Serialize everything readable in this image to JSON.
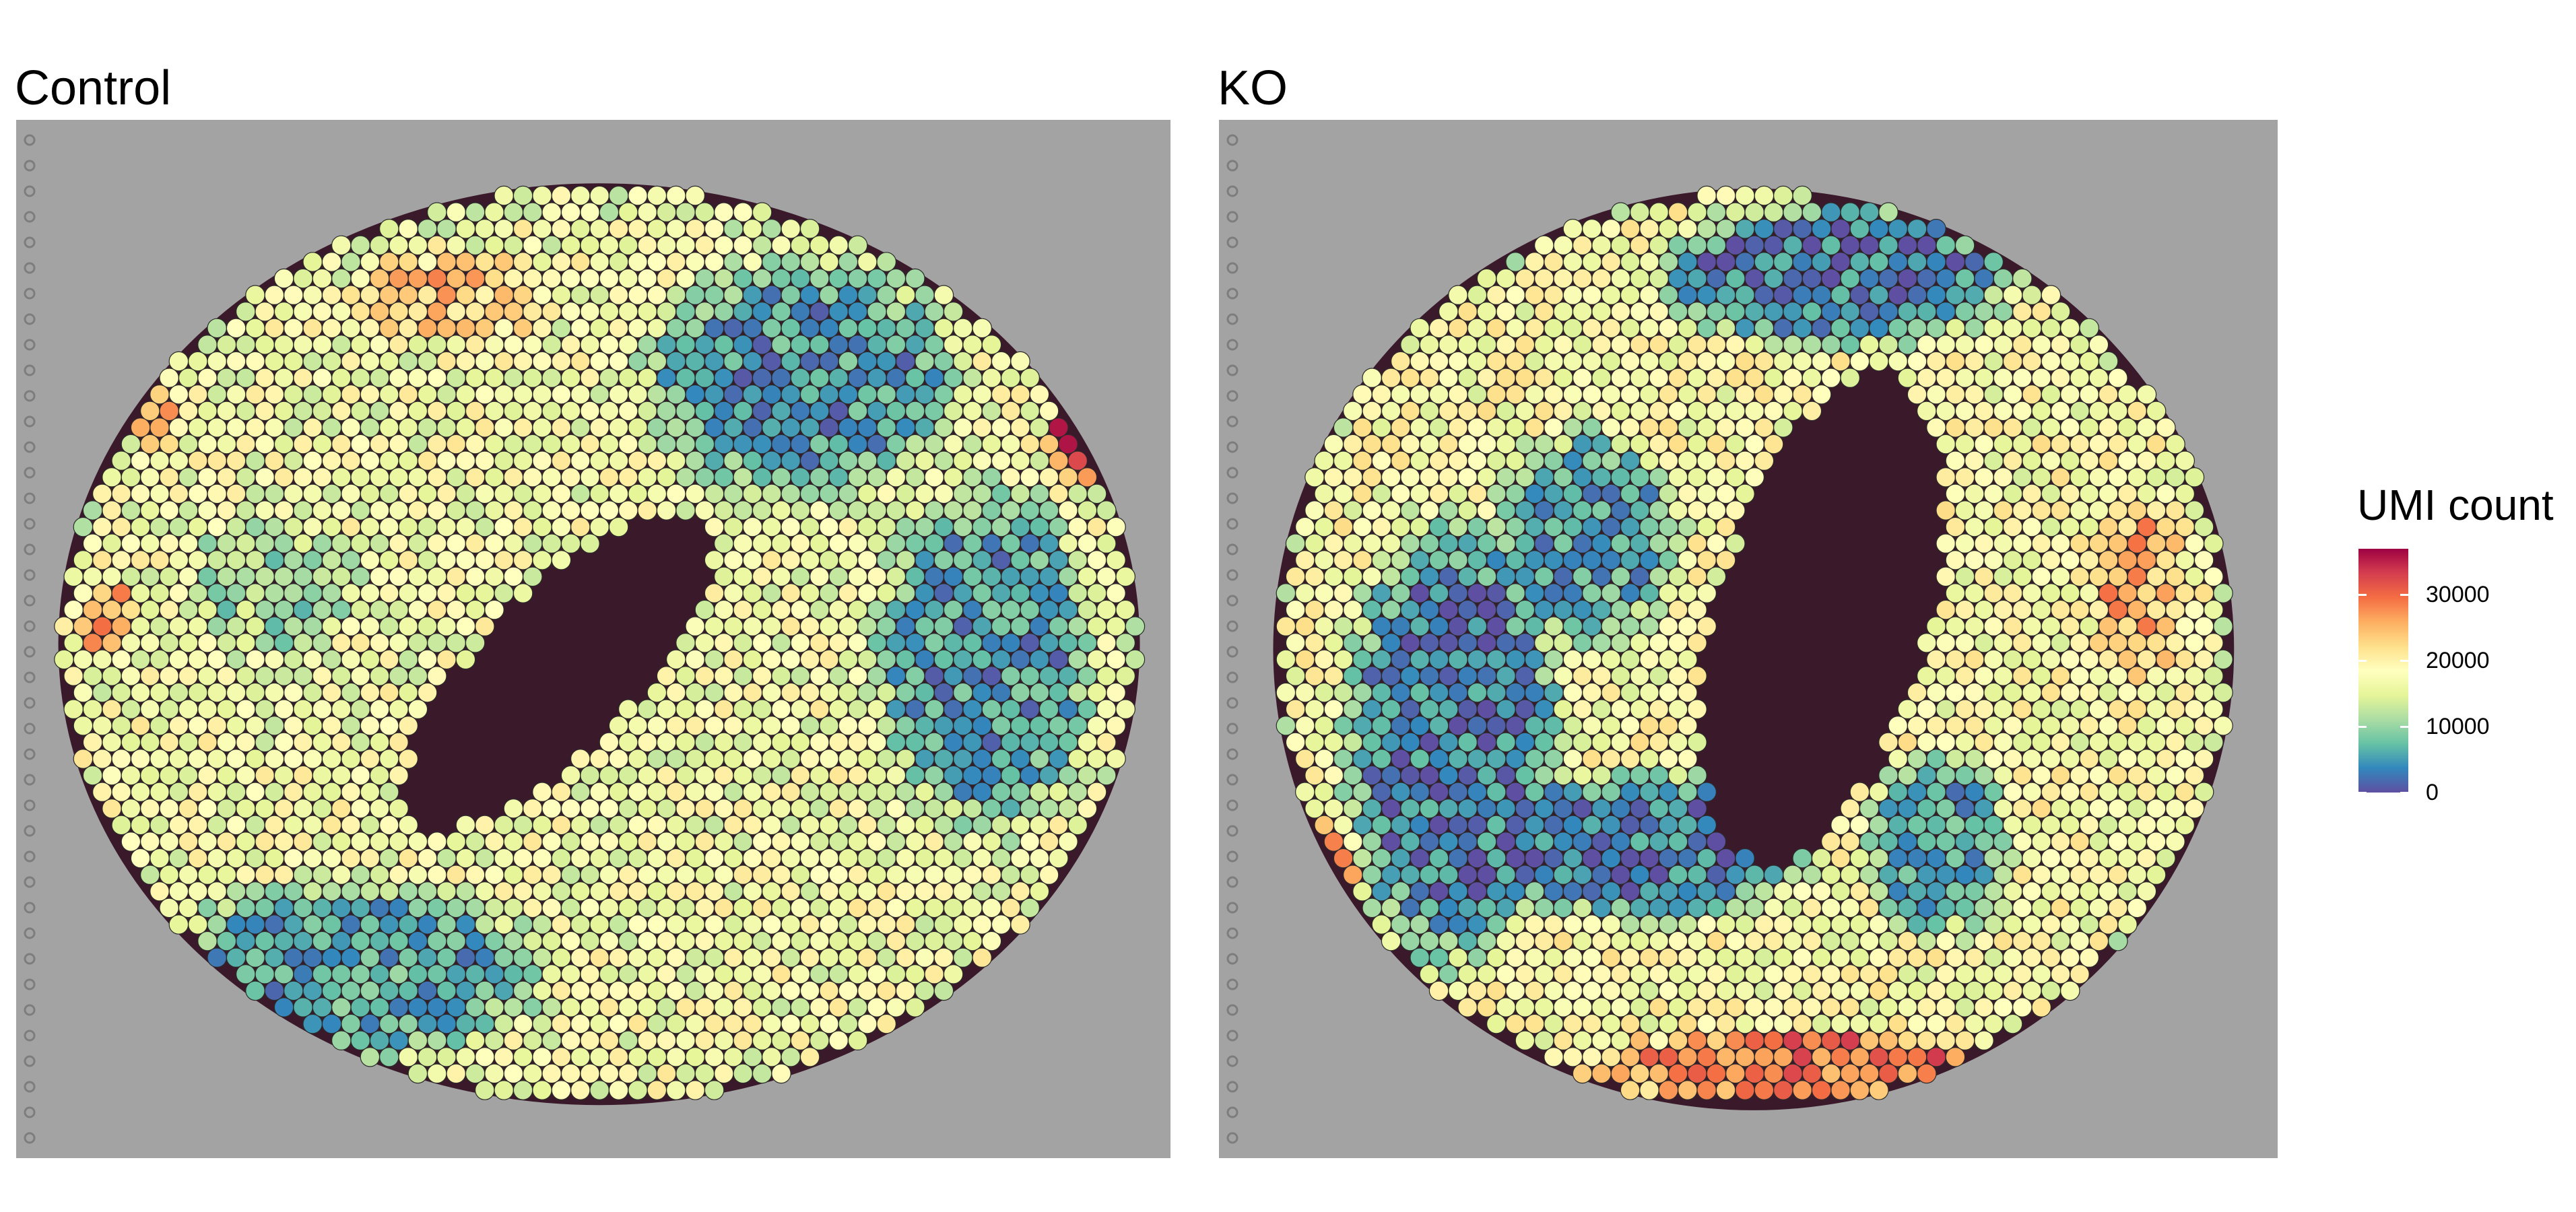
{
  "chart_data": [
    {
      "type": "heatmap",
      "title": "Control",
      "description_value": "UMI count per spot",
      "regions": [
        {
          "cx": 0.5,
          "cy": 0.52,
          "rx": 0.46,
          "ry": 0.43,
          "value": 17000
        },
        {
          "cx": 0.68,
          "cy": 0.25,
          "rx": 0.16,
          "ry": 0.13,
          "value": 5000
        },
        {
          "cx": 0.84,
          "cy": 0.52,
          "rx": 0.11,
          "ry": 0.19,
          "value": 5000
        },
        {
          "cx": 0.29,
          "cy": 0.82,
          "rx": 0.19,
          "ry": 0.1,
          "value": 6000
        },
        {
          "cx": 0.22,
          "cy": 0.45,
          "rx": 0.09,
          "ry": 0.08,
          "value": 11000
        },
        {
          "cx": 0.38,
          "cy": 0.17,
          "rx": 0.1,
          "ry": 0.05,
          "value": 24000
        },
        {
          "cx": 0.92,
          "cy": 0.28,
          "rx": 0.03,
          "ry": 0.08,
          "value": 33000
        },
        {
          "cx": 0.08,
          "cy": 0.48,
          "rx": 0.03,
          "ry": 0.04,
          "value": 27000
        },
        {
          "cx": 0.12,
          "cy": 0.28,
          "rx": 0.03,
          "ry": 0.04,
          "value": 27000
        }
      ],
      "holes": [
        {
          "cx": 0.47,
          "cy": 0.53,
          "rx": 0.07,
          "ry": 0.19,
          "rot": 40
        }
      ],
      "tissue": {
        "cx": 0.505,
        "cy": 0.505,
        "rx": 0.465,
        "ry": 0.44
      }
    },
    {
      "type": "heatmap",
      "title": "KO",
      "description_value": "UMI count per spot",
      "regions": [
        {
          "cx": 0.5,
          "cy": 0.52,
          "rx": 0.44,
          "ry": 0.44,
          "value": 18000
        },
        {
          "cx": 0.58,
          "cy": 0.15,
          "rx": 0.2,
          "ry": 0.08,
          "value": 3000
        },
        {
          "cx": 0.22,
          "cy": 0.6,
          "rx": 0.12,
          "ry": 0.25,
          "value": 3000
        },
        {
          "cx": 0.4,
          "cy": 0.7,
          "rx": 0.18,
          "ry": 0.08,
          "value": 3000
        },
        {
          "cx": 0.35,
          "cy": 0.4,
          "rx": 0.1,
          "ry": 0.12,
          "value": 6000
        },
        {
          "cx": 0.68,
          "cy": 0.7,
          "rx": 0.08,
          "ry": 0.1,
          "value": 6000
        },
        {
          "cx": 0.55,
          "cy": 0.91,
          "rx": 0.22,
          "ry": 0.04,
          "value": 29000
        },
        {
          "cx": 0.87,
          "cy": 0.45,
          "rx": 0.05,
          "ry": 0.1,
          "value": 25000
        },
        {
          "cx": 0.1,
          "cy": 0.72,
          "rx": 0.04,
          "ry": 0.05,
          "value": 29000
        }
      ],
      "holes": [
        {
          "cx": 0.57,
          "cy": 0.48,
          "rx": 0.1,
          "ry": 0.24,
          "rot": 15
        }
      ],
      "tissue": {
        "cx": 0.505,
        "cy": 0.51,
        "rx": 0.45,
        "ry": 0.44
      }
    }
  ],
  "legend": {
    "title": "UMI count",
    "min": 0,
    "max": 37000,
    "ticks": [
      "0",
      "10000",
      "20000",
      "30000"
    ],
    "tick_values": [
      0,
      10000,
      20000,
      30000
    ],
    "colors": [
      "#5e4fa2",
      "#3288bd",
      "#66c2a5",
      "#abdda4",
      "#e6f598",
      "#ffffbf",
      "#fee08b",
      "#fdae61",
      "#f46d43",
      "#d53e4f",
      "#9e0142"
    ]
  }
}
